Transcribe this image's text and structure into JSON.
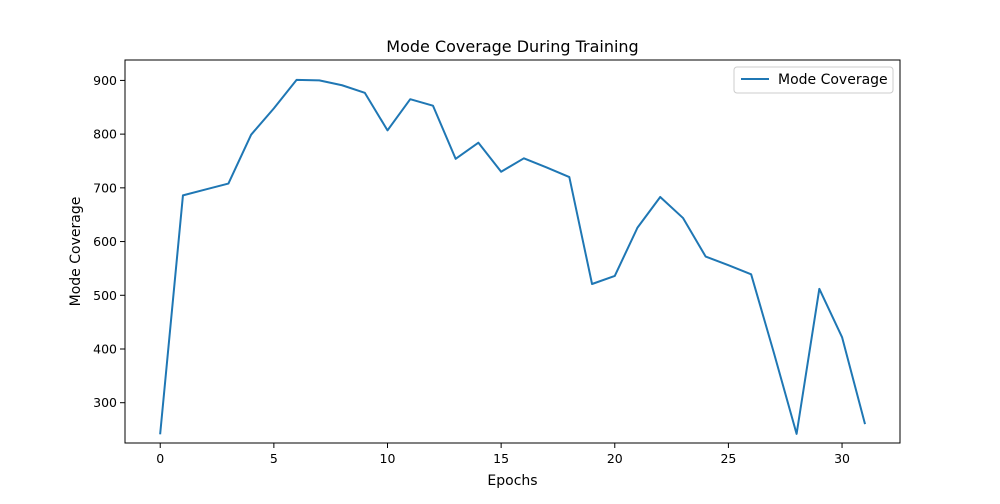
{
  "chart_data": {
    "type": "line",
    "title": "Mode Coverage During Training",
    "xlabel": "Epochs",
    "ylabel": "Mode Coverage",
    "xlim": [
      -1.55,
      32.55
    ],
    "ylim": [
      225,
      938
    ],
    "xticks": [
      0,
      5,
      10,
      15,
      20,
      25,
      30
    ],
    "yticks": [
      300,
      400,
      500,
      600,
      700,
      800,
      900
    ],
    "grid": false,
    "legend_position": "top-right",
    "series": [
      {
        "name": "Mode Coverage",
        "color": "#1f77b4",
        "x": [
          0,
          1,
          2,
          3,
          4,
          5,
          6,
          7,
          8,
          9,
          10,
          11,
          12,
          13,
          14,
          15,
          16,
          17,
          18,
          19,
          20,
          21,
          22,
          23,
          24,
          25,
          26,
          27,
          28,
          29,
          30,
          31
        ],
        "y": [
          243,
          686,
          697,
          708,
          799,
          848,
          901,
          900,
          891,
          877,
          807,
          865,
          853,
          754,
          784,
          730,
          755,
          738,
          720,
          521,
          536,
          626,
          683,
          644,
          572,
          556,
          539,
          393,
          242,
          512,
          422,
          262
        ]
      }
    ]
  }
}
